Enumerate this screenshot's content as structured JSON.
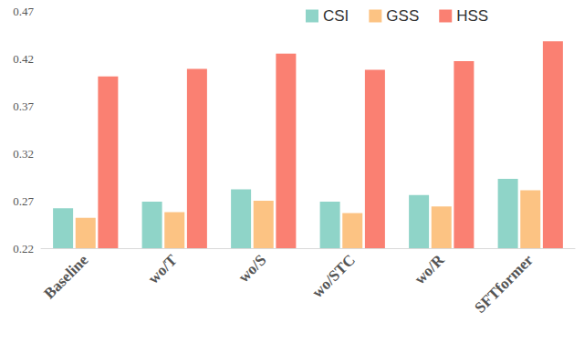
{
  "chart_data": {
    "type": "bar",
    "categories": [
      "Baseline",
      "wo/T",
      "wo/S",
      "wo/STC",
      "wo/R",
      "SFTformer"
    ],
    "series": [
      {
        "name": "CSI",
        "color": "#8fd4c8",
        "values": [
          0.262,
          0.269,
          0.282,
          0.269,
          0.276,
          0.293
        ]
      },
      {
        "name": "GSS",
        "color": "#fcc383",
        "values": [
          0.252,
          0.258,
          0.27,
          0.257,
          0.264,
          0.281
        ]
      },
      {
        "name": "HSS",
        "color": "#fa8072",
        "values": [
          0.401,
          0.409,
          0.425,
          0.408,
          0.417,
          0.438
        ]
      }
    ],
    "ylim": [
      0.22,
      0.47
    ],
    "yticks": [
      0.22,
      0.27,
      0.32,
      0.37,
      0.42,
      0.47
    ],
    "grid": false,
    "legend": "top"
  }
}
